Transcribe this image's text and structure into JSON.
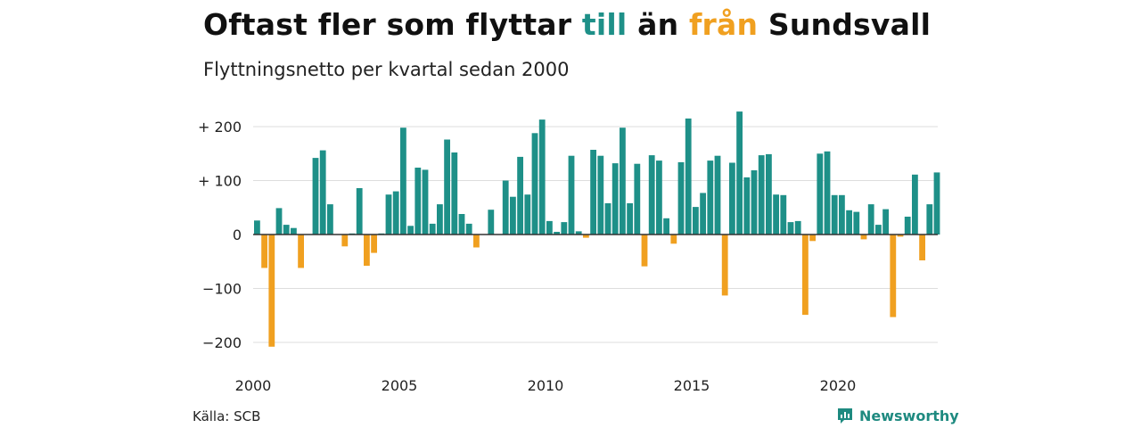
{
  "title": {
    "part1": "Oftast fler som flyttar ",
    "till": "till",
    "part2": " än ",
    "fran": "från",
    "part3": " Sundsvall"
  },
  "subtitle": "Flyttningsnetto per kvartal sedan 2000",
  "source": "Källa: SCB",
  "logo": {
    "text": "Newsworthy",
    "icon": "newsworthy-logo-icon"
  },
  "colors": {
    "positive": "#1e9088",
    "negative": "#f0a020",
    "grid": "#dddddd",
    "zero": "#333333"
  },
  "chart_data": {
    "type": "bar",
    "title": "Oftast fler som flyttar till än från Sundsvall",
    "subtitle": "Flyttningsnetto per kvartal sedan 2000",
    "xlabel": "",
    "ylabel": "",
    "ylim": [
      -230,
      240
    ],
    "yticks": [
      200,
      100,
      0,
      -100,
      -200
    ],
    "ytick_labels": [
      "+ 200",
      "+ 100",
      "0",
      "−100",
      "−200"
    ],
    "xticks": [
      {
        "label": "2000",
        "index": 0
      },
      {
        "label": "2005",
        "index": 20
      },
      {
        "label": "2010",
        "index": 40
      },
      {
        "label": "2015",
        "index": 60
      },
      {
        "label": "2020",
        "index": 80
      }
    ],
    "grid": true,
    "legend": "none",
    "period_start": "2000 Q1",
    "values": [
      26,
      -62,
      -208,
      49,
      18,
      12,
      -62,
      0,
      142,
      156,
      56,
      0,
      -22,
      2,
      86,
      -58,
      -34,
      2,
      74,
      80,
      198,
      16,
      124,
      120,
      20,
      56,
      176,
      152,
      38,
      20,
      -24,
      0,
      46,
      0,
      100,
      70,
      144,
      74,
      188,
      213,
      25,
      5,
      23,
      146,
      6,
      -6,
      157,
      146,
      58,
      132,
      198,
      58,
      131,
      -59,
      147,
      137,
      30,
      -17,
      134,
      215,
      51,
      77,
      137,
      146,
      -113,
      133,
      228,
      106,
      119,
      147,
      149,
      74,
      73,
      23,
      25,
      -149,
      -12,
      150,
      154,
      73,
      73,
      45,
      42,
      -9,
      56,
      18,
      47,
      -153,
      -4,
      33,
      111,
      -48,
      56,
      115
    ]
  }
}
